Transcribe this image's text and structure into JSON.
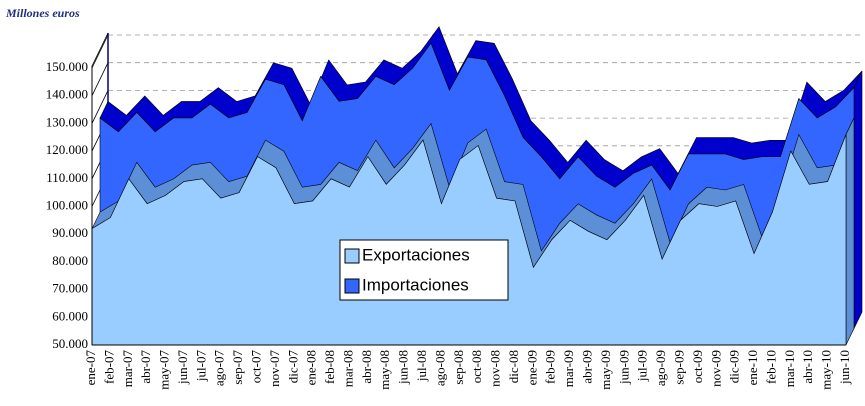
{
  "chart_data": {
    "type": "area3d",
    "title": "Millones euros",
    "categories": [
      "ene-07",
      "feb-07",
      "mar-07",
      "abr-07",
      "may-07",
      "jun-07",
      "jul-07",
      "ago-07",
      "sep-07",
      "oct-07",
      "nov-07",
      "dic-07",
      "ene-08",
      "feb-08",
      "mar-08",
      "abr-08",
      "may-08",
      "jun-08",
      "jul-08",
      "ago-08",
      "sep-08",
      "oct-08",
      "nov-08",
      "dic-08",
      "ene-09",
      "feb-09",
      "mar-09",
      "abr-09",
      "may-09",
      "jun-09",
      "jul-09",
      "ago-09",
      "sep-09",
      "oct-09",
      "nov-09",
      "dic-09",
      "ene-10",
      "feb-10",
      "mar-10",
      "abr-10",
      "may-10",
      "jun-10"
    ],
    "series": [
      {
        "name": "Exportaciones",
        "color": "#99ccff",
        "values": [
          92000,
          96000,
          110000,
          101000,
          104000,
          109000,
          110000,
          103000,
          105000,
          118000,
          114000,
          101000,
          102000,
          110000,
          107000,
          118000,
          108000,
          115000,
          124000,
          101000,
          117000,
          122000,
          103000,
          102000,
          78000,
          88000,
          95000,
          91000,
          88000,
          95000,
          104000,
          81000,
          95000,
          101000,
          100000,
          102000,
          83000,
          98000,
          120000,
          108000,
          109000,
          126000
        ]
      },
      {
        "name": "Importaciones",
        "color": "#3366ff",
        "values": [
          126000,
          121000,
          128000,
          121000,
          126000,
          126000,
          131000,
          126000,
          128000,
          140000,
          138000,
          125000,
          141000,
          132000,
          133000,
          141000,
          138000,
          144000,
          153000,
          136000,
          148000,
          147000,
          134000,
          119000,
          112000,
          104000,
          112000,
          105000,
          101000,
          106000,
          109000,
          100000,
          113000,
          113000,
          113000,
          111000,
          112000,
          112000,
          133000,
          126000,
          130000,
          137000
        ]
      }
    ],
    "ylim": [
      50000,
      150000
    ],
    "yticks": [
      {
        "value": 50000,
        "label": "50.000"
      },
      {
        "value": 60000,
        "label": "60.000"
      },
      {
        "value": 70000,
        "label": "70.000"
      },
      {
        "value": 80000,
        "label": "80.000"
      },
      {
        "value": 90000,
        "label": "90.000"
      },
      {
        "value": 100000,
        "label": "100.000"
      },
      {
        "value": 110000,
        "label": "110.000"
      },
      {
        "value": 120000,
        "label": "120.000"
      },
      {
        "value": 130000,
        "label": "130.000"
      },
      {
        "value": 140000,
        "label": "140.000"
      },
      {
        "value": 150000,
        "label": "150.000"
      }
    ],
    "grid": true
  }
}
